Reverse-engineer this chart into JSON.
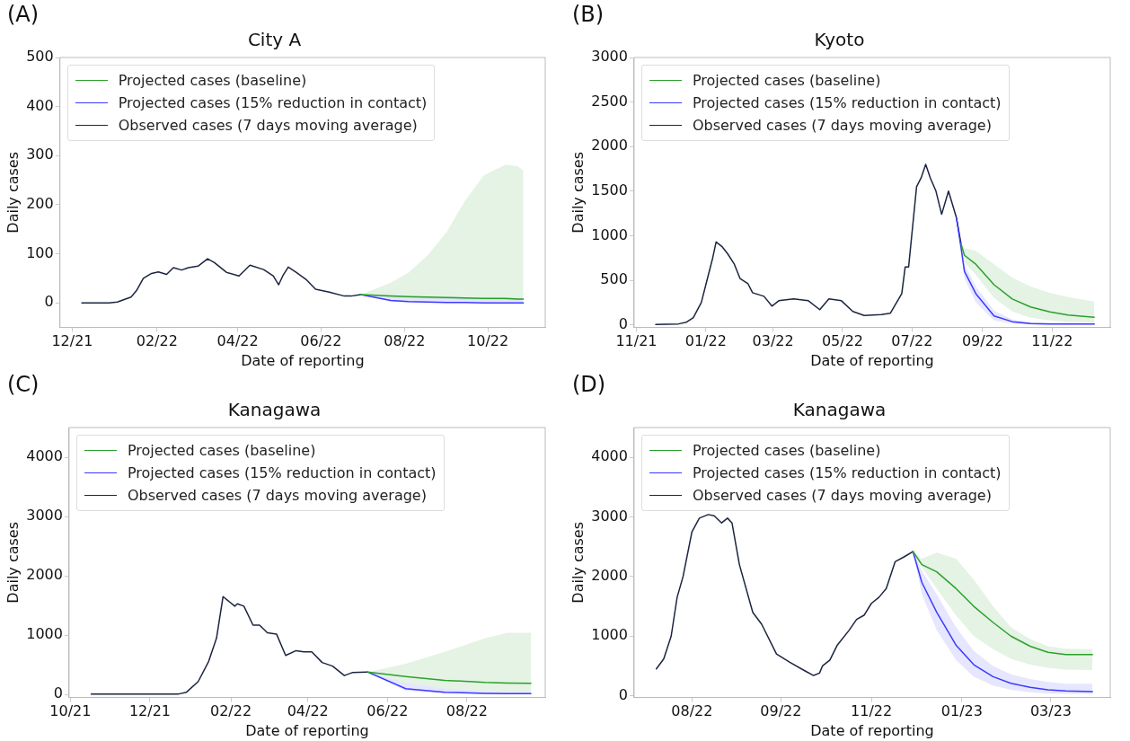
{
  "chart_data": [
    {
      "type": "line",
      "title": "City A",
      "xlabel": "Date of reporting",
      "ylabel": "Daily cases",
      "annotations": [
        "(A)"
      ],
      "legend": "top left",
      "grid": false,
      "xlim": [
        "2021-11-22",
        "2022-11-12"
      ],
      "xticks": [
        {
          "value": "2021-12-01",
          "label": "12/21"
        },
        {
          "value": "2022-02-01",
          "label": "02/22"
        },
        {
          "value": "2022-04-01",
          "label": "04/22"
        },
        {
          "value": "2022-06-01",
          "label": "06/22"
        },
        {
          "value": "2022-08-01",
          "label": "08/22"
        },
        {
          "value": "2022-10-01",
          "label": "10/22"
        }
      ],
      "ylim": [
        -50,
        500
      ],
      "yticks": [
        0,
        100,
        200,
        300,
        400,
        500
      ],
      "series": [
        {
          "name": "Projected cases (baseline)",
          "color": "#2ca02c",
          "x": [
            "2022-06-30",
            "2022-07-22",
            "2022-08-04",
            "2022-08-18",
            "2022-09-01",
            "2022-09-14",
            "2022-09-28",
            "2022-10-14",
            "2022-10-23",
            "2022-10-27"
          ],
          "values": [
            17,
            14,
            13,
            12,
            11,
            10,
            9,
            9,
            8,
            8
          ],
          "lower": [
            17,
            11,
            10,
            9,
            8,
            7,
            7,
            6,
            6,
            6
          ],
          "upper": [
            17,
            41,
            62,
            97,
            145,
            207,
            260,
            282,
            278,
            270
          ]
        },
        {
          "name": "Projected cases (15% reduction in contact)",
          "color": "#3a3aff",
          "x": [
            "2022-06-30",
            "2022-07-22",
            "2022-08-04",
            "2022-08-18",
            "2022-09-01",
            "2022-09-14",
            "2022-09-28",
            "2022-10-14",
            "2022-10-23",
            "2022-10-27"
          ],
          "values": [
            17,
            5,
            3,
            2,
            1,
            1,
            0,
            0,
            0,
            0
          ],
          "lower": [
            17,
            3,
            1,
            0,
            0,
            0,
            0,
            0,
            0,
            0
          ],
          "upper": [
            17,
            14,
            13,
            12,
            11,
            10,
            10,
            10,
            10,
            10
          ]
        },
        {
          "name": "Observed cases (7 days moving average)",
          "color": "#1c2540",
          "x": [
            "2021-12-08",
            "2021-12-28",
            "2022-01-03",
            "2022-01-13",
            "2022-01-17",
            "2022-01-22",
            "2022-01-28",
            "2022-02-02",
            "2022-02-08",
            "2022-02-13",
            "2022-02-19",
            "2022-02-24",
            "2022-03-03",
            "2022-03-10",
            "2022-03-15",
            "2022-03-24",
            "2022-04-02",
            "2022-04-10",
            "2022-04-20",
            "2022-04-27",
            "2022-05-01",
            "2022-05-04",
            "2022-05-08",
            "2022-05-14",
            "2022-05-21",
            "2022-05-28",
            "2022-06-07",
            "2022-06-18",
            "2022-06-23",
            "2022-06-30"
          ],
          "values": [
            0,
            0,
            2,
            12,
            25,
            50,
            60,
            63,
            58,
            72,
            67,
            72,
            75,
            90,
            82,
            62,
            55,
            77,
            68,
            55,
            37,
            55,
            73,
            62,
            48,
            28,
            22,
            14,
            14,
            17
          ]
        }
      ]
    },
    {
      "type": "line",
      "title": "Kyoto",
      "xlabel": "Date of reporting",
      "ylabel": "Daily cases",
      "annotations": [
        "(B)"
      ],
      "legend": "top left",
      "grid": false,
      "xlim": [
        "2021-10-30",
        "2022-12-22"
      ],
      "xticks": [
        {
          "value": "2021-11-01",
          "label": "11/21"
        },
        {
          "value": "2022-01-01",
          "label": "01/22"
        },
        {
          "value": "2022-03-01",
          "label": "03/22"
        },
        {
          "value": "2022-05-01",
          "label": "05/22"
        },
        {
          "value": "2022-07-01",
          "label": "07/22"
        },
        {
          "value": "2022-09-01",
          "label": "09/22"
        },
        {
          "value": "2022-11-01",
          "label": "11/22"
        }
      ],
      "ylim": [
        -30,
        3000
      ],
      "yticks": [
        0,
        500,
        1000,
        1500,
        2000,
        2500,
        3000
      ],
      "series": [
        {
          "name": "Projected cases (baseline)",
          "color": "#2ca02c",
          "x": [
            "2022-08-13",
            "2022-08-16",
            "2022-08-26",
            "2022-09-11",
            "2022-09-27",
            "2022-10-13",
            "2022-10-30",
            "2022-11-15",
            "2022-12-08"
          ],
          "values": [
            910,
            780,
            680,
            450,
            290,
            200,
            145,
            110,
            85
          ],
          "lower": [
            910,
            700,
            560,
            300,
            150,
            80,
            50,
            35,
            25
          ],
          "upper": [
            910,
            860,
            830,
            680,
            530,
            430,
            360,
            310,
            260
          ]
        },
        {
          "name": "Projected cases (15% reduction in contact)",
          "color": "#3a3aff",
          "x": [
            "2022-08-09",
            "2022-08-13",
            "2022-08-16",
            "2022-08-26",
            "2022-09-11",
            "2022-09-27",
            "2022-10-13",
            "2022-10-30",
            "2022-11-15",
            "2022-12-08"
          ],
          "values": [
            1200,
            870,
            600,
            350,
            100,
            35,
            15,
            10,
            8,
            8
          ],
          "lower": [
            1200,
            820,
            520,
            250,
            50,
            15,
            5,
            3,
            2,
            2
          ],
          "upper": [
            1200,
            920,
            680,
            430,
            160,
            60,
            30,
            20,
            15,
            15
          ]
        },
        {
          "name": "Observed cases (7 days moving average)",
          "color": "#1c2540",
          "x": [
            "2021-11-18",
            "2021-12-08",
            "2021-12-15",
            "2021-12-21",
            "2021-12-28",
            "2022-01-02",
            "2022-01-07",
            "2022-01-10",
            "2022-01-15",
            "2022-01-20",
            "2022-01-26",
            "2022-01-31",
            "2022-02-07",
            "2022-02-11",
            "2022-02-21",
            "2022-02-28",
            "2022-03-06",
            "2022-03-19",
            "2022-04-01",
            "2022-04-11",
            "2022-04-19",
            "2022-04-30",
            "2022-05-10",
            "2022-05-20",
            "2022-06-04",
            "2022-06-12",
            "2022-06-22",
            "2022-06-25",
            "2022-06-28",
            "2022-07-05",
            "2022-07-09",
            "2022-07-13",
            "2022-07-17",
            "2022-07-22",
            "2022-07-27",
            "2022-08-02",
            "2022-08-09",
            "2022-08-13"
          ],
          "values": [
            5,
            10,
            30,
            80,
            250,
            500,
            750,
            930,
            880,
            800,
            680,
            520,
            460,
            360,
            320,
            210,
            270,
            290,
            270,
            170,
            290,
            270,
            150,
            105,
            115,
            130,
            350,
            650,
            650,
            1550,
            1650,
            1800,
            1650,
            1500,
            1240,
            1500,
            1200,
            910
          ]
        }
      ]
    },
    {
      "type": "line",
      "title": "Kanagawa",
      "xlabel": "Date of reporting",
      "ylabel": "Daily cases",
      "annotations": [
        "(C)"
      ],
      "legend": "top left",
      "grid": false,
      "xlim": [
        "2021-09-30",
        "2022-09-30"
      ],
      "xticks": [
        {
          "value": "2021-10-01",
          "label": "10/21"
        },
        {
          "value": "2021-12-01",
          "label": "12/21"
        },
        {
          "value": "2022-02-01",
          "label": "02/22"
        },
        {
          "value": "2022-04-01",
          "label": "04/22"
        },
        {
          "value": "2022-06-01",
          "label": "06/22"
        },
        {
          "value": "2022-08-01",
          "label": "08/22"
        }
      ],
      "ylim": [
        -50,
        4500
      ],
      "yticks": [
        0,
        1000,
        2000,
        3000,
        4000
      ],
      "series": [
        {
          "name": "Projected cases (baseline)",
          "color": "#2ca02c",
          "x": [
            "2022-05-17",
            "2022-06-15",
            "2022-07-15",
            "2022-08-15",
            "2022-09-01",
            "2022-09-19"
          ],
          "values": [
            380,
            305,
            240,
            205,
            195,
            190
          ],
          "lower": [
            380,
            200,
            100,
            60,
            50,
            50
          ],
          "upper": [
            380,
            520,
            720,
            950,
            1040,
            1040
          ]
        },
        {
          "name": "Projected cases (15% reduction in contact)",
          "color": "#3a3aff",
          "x": [
            "2022-05-17",
            "2022-06-15",
            "2022-07-15",
            "2022-08-15",
            "2022-09-01",
            "2022-09-19"
          ],
          "values": [
            380,
            100,
            40,
            20,
            15,
            15
          ],
          "lower": [
            380,
            60,
            20,
            8,
            5,
            5
          ],
          "upper": [
            380,
            200,
            100,
            60,
            50,
            50
          ]
        },
        {
          "name": "Observed cases (7 days moving average)",
          "color": "#1c2540",
          "x": [
            "2021-10-17",
            "2021-12-23",
            "2021-12-29",
            "2022-01-07",
            "2022-01-15",
            "2022-01-21",
            "2022-01-26",
            "2022-02-04",
            "2022-02-06",
            "2022-02-11",
            "2022-02-18",
            "2022-02-23",
            "2022-03-01",
            "2022-03-08",
            "2022-03-15",
            "2022-03-23",
            "2022-03-29",
            "2022-04-04",
            "2022-04-12",
            "2022-04-20",
            "2022-04-29",
            "2022-05-05",
            "2022-05-16",
            "2022-05-17"
          ],
          "values": [
            10,
            10,
            40,
            220,
            560,
            950,
            1650,
            1490,
            1530,
            1490,
            1170,
            1170,
            1040,
            1020,
            660,
            740,
            720,
            720,
            540,
            480,
            320,
            370,
            380,
            380
          ]
        }
      ]
    },
    {
      "type": "line",
      "title": "Kanagawa",
      "xlabel": "Date of reporting",
      "ylabel": "Daily cases",
      "annotations": [
        "(D)"
      ],
      "legend": "top left",
      "grid": false,
      "xlim": [
        "2022-06-23",
        "2023-05-10"
      ],
      "xticks": [
        {
          "value": "2022-08-01",
          "label": "08/22"
        },
        {
          "value": "2022-09-30",
          "label": "09/22"
        },
        {
          "value": "2022-11-30",
          "label": "11/22"
        },
        {
          "value": "2023-01-30",
          "label": "01/23"
        },
        {
          "value": "2023-03-31",
          "label": "03/23"
        }
      ],
      "ylim": [
        -30,
        4500
      ],
      "yticks": [
        0,
        1000,
        2000,
        3000,
        4000
      ],
      "series": [
        {
          "name": "Projected cases (baseline)",
          "color": "#2ca02c",
          "x": [
            "2022-12-28",
            "2023-01-03",
            "2023-01-13",
            "2023-01-26",
            "2023-02-07",
            "2023-02-20",
            "2023-03-04",
            "2023-03-17",
            "2023-03-29",
            "2023-04-10",
            "2023-04-28"
          ],
          "values": [
            2420,
            2200,
            2080,
            1800,
            1500,
            1230,
            1000,
            830,
            730,
            690,
            690
          ],
          "lower": [
            2420,
            2150,
            1800,
            1350,
            1000,
            780,
            620,
            520,
            470,
            440,
            430
          ],
          "upper": [
            2420,
            2300,
            2400,
            2300,
            1950,
            1500,
            1150,
            950,
            830,
            790,
            780
          ]
        },
        {
          "name": "Projected cases (15% reduction in contact)",
          "color": "#3a3aff",
          "x": [
            "2022-12-28",
            "2023-01-03",
            "2023-01-13",
            "2023-01-26",
            "2023-02-07",
            "2023-02-20",
            "2023-03-04",
            "2023-03-17",
            "2023-03-29",
            "2023-04-10",
            "2023-04-28"
          ],
          "values": [
            2420,
            1900,
            1400,
            850,
            520,
            320,
            210,
            140,
            100,
            80,
            70
          ],
          "lower": [
            2420,
            1700,
            1100,
            600,
            320,
            170,
            100,
            60,
            40,
            30,
            30
          ],
          "upper": [
            2420,
            2100,
            1700,
            1150,
            750,
            500,
            360,
            280,
            230,
            200,
            200
          ]
        },
        {
          "name": "Observed cases (7 days moving average)",
          "color": "#1c2540",
          "x": [
            "2022-07-08",
            "2022-07-13",
            "2022-07-18",
            "2022-07-22",
            "2022-07-26",
            "2022-08-01",
            "2022-08-06",
            "2022-08-12",
            "2022-08-16",
            "2022-08-21",
            "2022-08-25",
            "2022-08-28",
            "2022-09-02",
            "2022-09-11",
            "2022-09-17",
            "2022-09-27",
            "2022-10-06",
            "2022-10-16",
            "2022-10-22",
            "2022-10-26",
            "2022-10-28",
            "2022-11-02",
            "2022-11-07",
            "2022-11-15",
            "2022-11-20",
            "2022-11-25",
            "2022-11-30",
            "2022-12-05",
            "2022-12-10",
            "2022-12-16",
            "2022-12-22",
            "2022-12-28"
          ],
          "values": [
            450,
            620,
            1000,
            1650,
            2000,
            2750,
            2980,
            3040,
            3020,
            2900,
            2980,
            2900,
            2200,
            1400,
            1200,
            700,
            560,
            420,
            340,
            380,
            500,
            600,
            850,
            1100,
            1280,
            1350,
            1550,
            1650,
            1800,
            2250,
            2330,
            2420
          ]
        }
      ]
    }
  ]
}
